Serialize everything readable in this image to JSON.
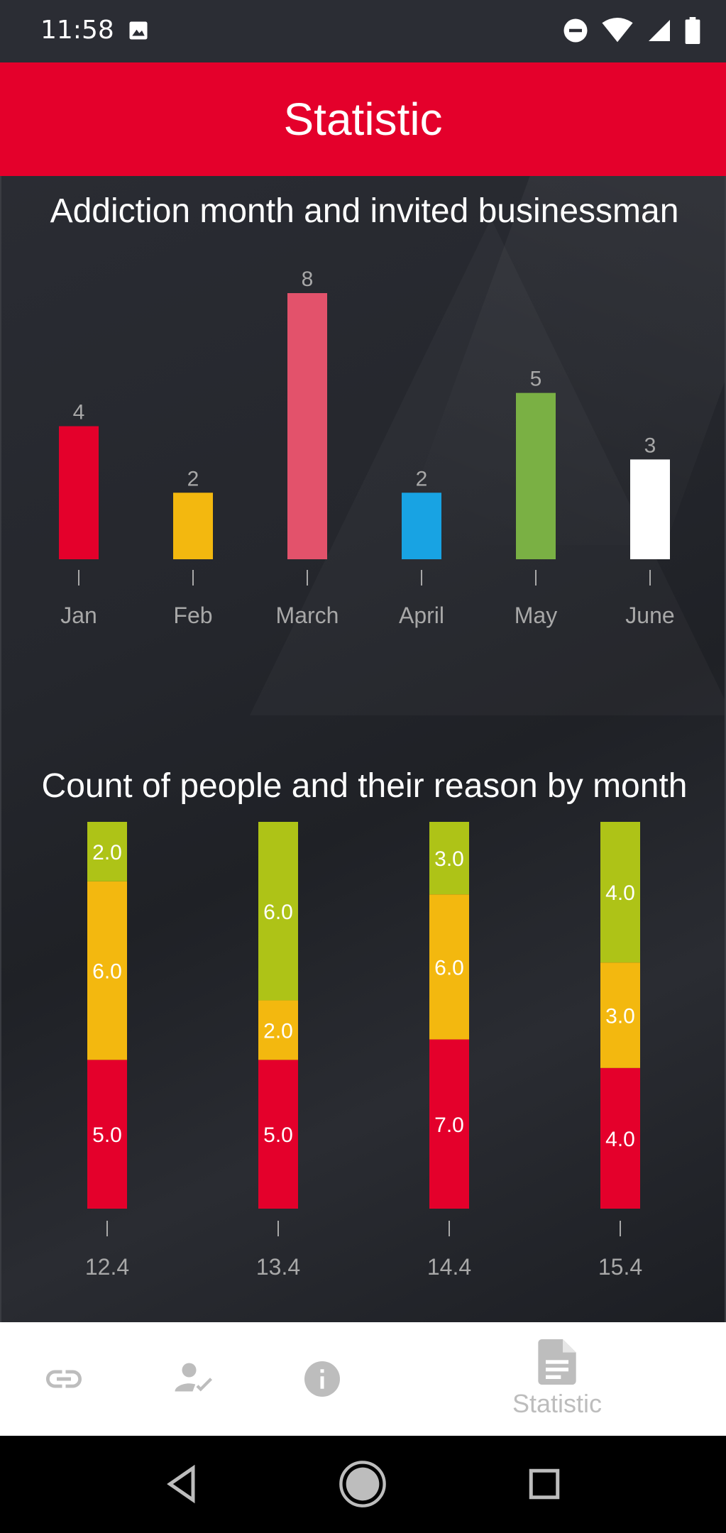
{
  "status_bar": {
    "time": "11:58"
  },
  "app_bar": {
    "title": "Statistic"
  },
  "chart1": {
    "title": "Addiction month and invited businessman"
  },
  "chart2": {
    "title": "Count of people and their reason by month"
  },
  "bottom_nav": {
    "items": [
      {
        "icon": "link-icon",
        "label": ""
      },
      {
        "icon": "person-check-icon",
        "label": ""
      },
      {
        "icon": "info-icon",
        "label": ""
      },
      {
        "icon": "document-icon",
        "label": "Statistic"
      }
    ]
  },
  "chart_data": [
    {
      "type": "bar",
      "title": "Addiction month and invited businessman",
      "categories": [
        "Jan",
        "Feb",
        "March",
        "April",
        "May",
        "June"
      ],
      "values": [
        4,
        2,
        8,
        2,
        5,
        3
      ],
      "colors": [
        "#e4002b",
        "#f3b80f",
        "#e3526b",
        "#18a3e3",
        "#7ab044",
        "#ffffff"
      ],
      "ylim": [
        0,
        8
      ]
    },
    {
      "type": "bar",
      "stacked": true,
      "title": "Count of people and their reason by month",
      "categories": [
        "12.4",
        "13.4",
        "14.4",
        "15.4"
      ],
      "series": [
        {
          "values": [
            5.0,
            5.0,
            7.0,
            4.0
          ],
          "color": "#e4002b"
        },
        {
          "values": [
            6.0,
            2.0,
            6.0,
            3.0
          ],
          "color": "#f3b80f"
        },
        {
          "values": [
            2.0,
            6.0,
            3.0,
            4.0
          ],
          "color": "#aec317"
        }
      ]
    }
  ]
}
